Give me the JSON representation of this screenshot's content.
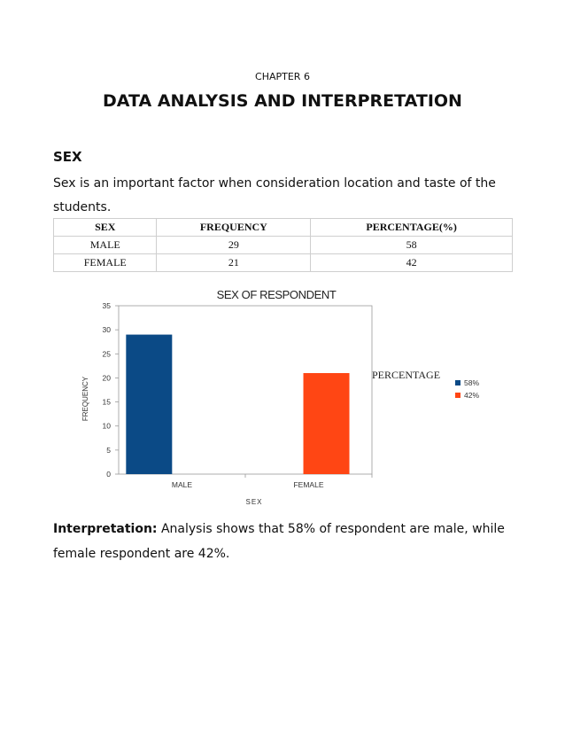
{
  "chapter": "CHAPTER 6",
  "title": "DATA ANALYSIS AND INTERPRETATION",
  "section_heading": "SEX",
  "intro": "Sex is an important factor when consideration location and taste of the students.",
  "table": {
    "headers": [
      "SEX",
      "FREQUENCY",
      "PERCENTAGE(%)"
    ],
    "rows": [
      [
        "MALE",
        "29",
        "58"
      ],
      [
        "FEMALE",
        "21",
        "42"
      ]
    ]
  },
  "interpretation": {
    "label": "Interpretation:",
    "text": " Analysis shows that 58% of respondent are male, while female respondent are 42%."
  },
  "chart_data": {
    "type": "bar",
    "title": "SEX OF RESPONDENT",
    "xlabel": "SEX",
    "ylabel": "FREQUENCY",
    "categories": [
      "MALE",
      "FEMALE"
    ],
    "values": [
      29,
      21
    ],
    "colors": [
      "#0b4a86",
      "#ff4614"
    ],
    "ylim": [
      0,
      35
    ],
    "yticks": [
      0,
      5,
      10,
      15,
      20,
      25,
      30,
      35
    ],
    "grid": false,
    "legend_title": "PERCENTAGE",
    "legend": [
      {
        "label": "58%",
        "color": "#0b4a86"
      },
      {
        "label": "42%",
        "color": "#ff4614"
      }
    ],
    "legend_position": "right"
  }
}
